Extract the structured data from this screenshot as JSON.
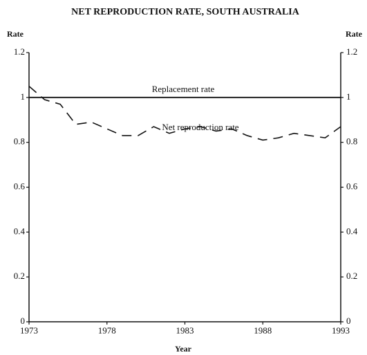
{
  "chart_data": {
    "type": "line",
    "title": "NET REPRODUCTION RATE, SOUTH AUSTRALIA",
    "ylabel": "Rate",
    "y2label": "Rate",
    "xlabel": "Year",
    "x": [
      1973,
      1974,
      1975,
      1976,
      1977,
      1978,
      1979,
      1980,
      1981,
      1982,
      1983,
      1984,
      1985,
      1986,
      1987,
      1988,
      1989,
      1990,
      1991,
      1992,
      1993
    ],
    "series": [
      {
        "name": "Replacement rate",
        "color": "#111111",
        "style": "solid",
        "values": [
          1,
          1,
          1,
          1,
          1,
          1,
          1,
          1,
          1,
          1,
          1,
          1,
          1,
          1,
          1,
          1,
          1,
          1,
          1,
          1,
          1
        ]
      },
      {
        "name": "Net reproduction rate",
        "color": "#111111",
        "style": "dashed",
        "values": [
          1.05,
          0.99,
          0.97,
          0.88,
          0.89,
          0.86,
          0.83,
          0.83,
          0.87,
          0.84,
          0.86,
          0.87,
          0.85,
          0.86,
          0.83,
          0.81,
          0.82,
          0.84,
          0.83,
          0.82,
          0.87
        ]
      }
    ],
    "xlim": [
      1973,
      1993
    ],
    "xticks": [
      1973,
      1978,
      1983,
      1988,
      1993
    ],
    "ylim": [
      0,
      1.2
    ],
    "yticks": [
      0,
      0.2,
      0.4,
      0.6,
      0.8,
      1,
      1.2
    ],
    "y2lim": [
      0,
      1.2
    ],
    "y2ticks": [
      0,
      0.2,
      0.4,
      0.6,
      0.8,
      1,
      1.2
    ],
    "grid": false
  }
}
